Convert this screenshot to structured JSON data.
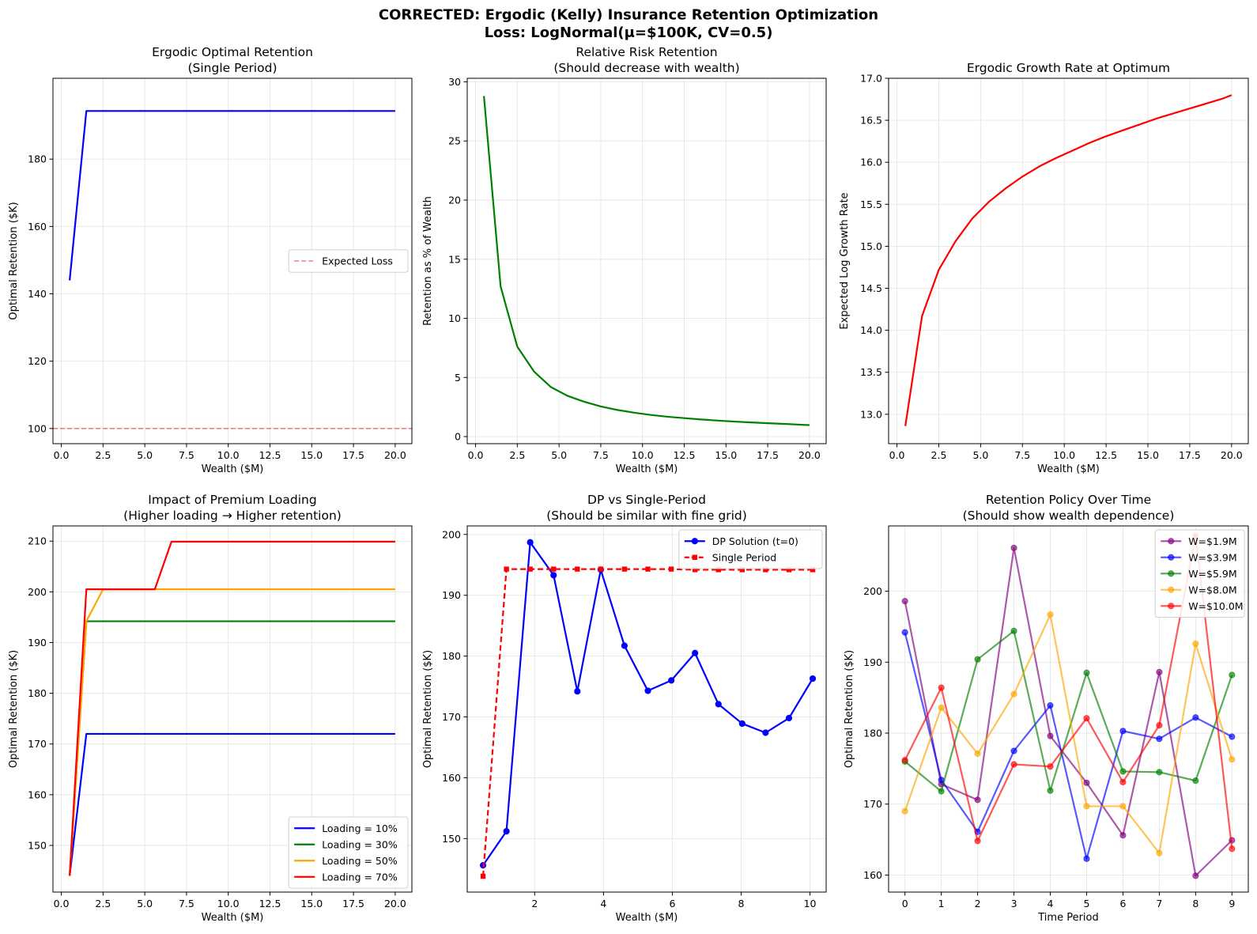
{
  "figure": {
    "title_line1": "CORRECTED: Ergodic (Kelly) Insurance Retention Optimization",
    "title_line2": "Loss: LogNormal(μ=$100K, CV=0.5)"
  },
  "chart_data": [
    {
      "id": "p1",
      "type": "line",
      "title": [
        "Ergodic Optimal Retention",
        "(Single Period)"
      ],
      "xlabel": "Wealth ($M)",
      "ylabel": "Optimal Retention ($K)",
      "xlim": [
        -0.5,
        21.0
      ],
      "ylim": [
        95.5,
        204.0
      ],
      "xticks": [
        0,
        2.5,
        5,
        7.5,
        10,
        12.5,
        15,
        17.5,
        20
      ],
      "xtick_labels": [
        "0.0",
        "2.5",
        "5.0",
        "7.5",
        "10.0",
        "12.5",
        "15.0",
        "17.5",
        "20.0"
      ],
      "yticks": [
        100,
        120,
        140,
        160,
        180
      ],
      "ytick_labels": [
        "100",
        "120",
        "140",
        "160",
        "180"
      ],
      "grid": true,
      "legend": {
        "position": "center-right",
        "entries": [
          {
            "label": "Expected Loss",
            "color": "#f08080",
            "dash": true
          }
        ]
      },
      "hlines": [
        {
          "y": 100,
          "color": "#f08080",
          "dash": true,
          "label": "Expected Loss"
        }
      ],
      "series": [
        {
          "name": "Optimal Retention",
          "color": "#0000ff",
          "width": 2.2,
          "marker": "none",
          "x": [
            0.5,
            1.5,
            20.0
          ],
          "y": [
            144.0,
            194.3,
            194.3
          ]
        }
      ]
    },
    {
      "id": "p2",
      "type": "line",
      "title": [
        "Relative Risk Retention",
        "(Should decrease with wealth)"
      ],
      "xlabel": "Wealth ($M)",
      "ylabel": "Retention as % of Wealth",
      "xlim": [
        -0.5,
        21.0
      ],
      "ylim": [
        -0.6,
        30.3
      ],
      "xticks": [
        0,
        2.5,
        5,
        7.5,
        10,
        12.5,
        15,
        17.5,
        20
      ],
      "xtick_labels": [
        "0.0",
        "2.5",
        "5.0",
        "7.5",
        "10.0",
        "12.5",
        "15.0",
        "17.5",
        "20.0"
      ],
      "yticks": [
        0,
        5,
        10,
        15,
        20,
        25,
        30
      ],
      "ytick_labels": [
        "0",
        "5",
        "10",
        "15",
        "20",
        "25",
        "30"
      ],
      "grid": true,
      "series": [
        {
          "name": "Retention %",
          "color": "#008000",
          "width": 2.2,
          "marker": "none",
          "x": [
            0.5,
            1.5,
            2.5,
            3.5,
            4.5,
            5.5,
            6.5,
            7.5,
            8.5,
            9.5,
            10.5,
            11.5,
            12.5,
            13.5,
            14.5,
            15.5,
            16.5,
            17.5,
            18.5,
            19.5,
            20.0
          ],
          "y": [
            28.8,
            12.7,
            7.6,
            5.5,
            4.2,
            3.45,
            2.95,
            2.55,
            2.25,
            2.02,
            1.83,
            1.68,
            1.56,
            1.45,
            1.35,
            1.27,
            1.2,
            1.13,
            1.07,
            1.0,
            0.97
          ]
        }
      ]
    },
    {
      "id": "p3",
      "type": "line",
      "title": [
        "Ergodic Growth Rate at Optimum"
      ],
      "xlabel": "Wealth ($M)",
      "ylabel": "Expected Log Growth Rate",
      "xlim": [
        -0.5,
        21.0
      ],
      "ylim": [
        12.65,
        17.0
      ],
      "xticks": [
        0,
        2.5,
        5,
        7.5,
        10,
        12.5,
        15,
        17.5,
        20
      ],
      "xtick_labels": [
        "0.0",
        "2.5",
        "5.0",
        "7.5",
        "10.0",
        "12.5",
        "15.0",
        "17.5",
        "20.0"
      ],
      "yticks": [
        13.0,
        13.5,
        14.0,
        14.5,
        15.0,
        15.5,
        16.0,
        16.5,
        17.0
      ],
      "ytick_labels": [
        "13.0",
        "13.5",
        "14.0",
        "14.5",
        "15.0",
        "15.5",
        "16.0",
        "16.5",
        "17.0"
      ],
      "grid": true,
      "series": [
        {
          "name": "Growth Rate",
          "color": "#ff0000",
          "width": 2.2,
          "marker": "none",
          "x": [
            0.5,
            1.5,
            2.5,
            3.5,
            4.5,
            5.5,
            6.5,
            7.5,
            8.5,
            9.5,
            10.5,
            11.5,
            12.5,
            13.5,
            14.5,
            15.5,
            16.5,
            17.5,
            18.5,
            19.5,
            20.0
          ],
          "y": [
            12.86,
            14.17,
            14.72,
            15.06,
            15.33,
            15.53,
            15.69,
            15.83,
            15.95,
            16.05,
            16.14,
            16.23,
            16.31,
            16.38,
            16.45,
            16.52,
            16.58,
            16.64,
            16.7,
            16.76,
            16.8
          ]
        }
      ]
    },
    {
      "id": "p4",
      "type": "line",
      "title": [
        "Impact of Premium Loading",
        "(Higher loading → Higher retention)"
      ],
      "xlabel": "Wealth ($M)",
      "ylabel": "Optimal Retention ($K)",
      "xlim": [
        -0.5,
        21.0
      ],
      "ylim": [
        140.8,
        213.0
      ],
      "xticks": [
        0,
        2.5,
        5,
        7.5,
        10,
        12.5,
        15,
        17.5,
        20
      ],
      "xtick_labels": [
        "0.0",
        "2.5",
        "5.0",
        "7.5",
        "10.0",
        "12.5",
        "15.0",
        "17.5",
        "20.0"
      ],
      "yticks": [
        150,
        160,
        170,
        180,
        190,
        200,
        210
      ],
      "ytick_labels": [
        "150",
        "160",
        "170",
        "180",
        "190",
        "200",
        "210"
      ],
      "grid": true,
      "legend": {
        "position": "lower-right",
        "entries": [
          {
            "label": "Loading = 10%",
            "color": "#0000ff"
          },
          {
            "label": "Loading = 30%",
            "color": "#008000"
          },
          {
            "label": "Loading = 50%",
            "color": "#ffa500"
          },
          {
            "label": "Loading = 70%",
            "color": "#ff0000"
          }
        ]
      },
      "series": [
        {
          "name": "Loading = 10%",
          "color": "#0000ff",
          "width": 2.2,
          "marker": "none",
          "x": [
            0.5,
            1.5,
            20.0
          ],
          "y": [
            144.0,
            172.0,
            172.0
          ]
        },
        {
          "name": "Loading = 30%",
          "color": "#008000",
          "width": 2.2,
          "marker": "none",
          "x": [
            0.5,
            1.5,
            20.0
          ],
          "y": [
            144.0,
            194.2,
            194.2
          ]
        },
        {
          "name": "Loading = 50%",
          "color": "#ffa500",
          "width": 2.2,
          "marker": "none",
          "x": [
            0.5,
            1.5,
            2.5,
            20.0
          ],
          "y": [
            144.0,
            194.2,
            200.5,
            200.5
          ]
        },
        {
          "name": "Loading = 70%",
          "color": "#ff0000",
          "width": 2.2,
          "marker": "none",
          "x": [
            0.5,
            1.5,
            5.6,
            6.6,
            20.0
          ],
          "y": [
            144.0,
            200.5,
            200.5,
            209.9,
            209.9
          ]
        }
      ]
    },
    {
      "id": "p5",
      "type": "line",
      "title": [
        "DP vs Single-Period",
        "(Should be similar with fine grid)"
      ],
      "xlabel": "Wealth ($M)",
      "ylabel": "Optimal Retention ($K)",
      "xlim": [
        0.04,
        10.47
      ],
      "ylim": [
        141.2,
        201.4
      ],
      "xticks": [
        2,
        4,
        6,
        8,
        10
      ],
      "xtick_labels": [
        "2",
        "4",
        "6",
        "8",
        "10"
      ],
      "yticks": [
        150,
        160,
        170,
        180,
        190,
        200
      ],
      "ytick_labels": [
        "150",
        "160",
        "170",
        "180",
        "190",
        "200"
      ],
      "grid": true,
      "legend": {
        "position": "upper-right",
        "entries": [
          {
            "label": "DP Solution (t=0)",
            "color": "#0000ff",
            "marker": "circle"
          },
          {
            "label": "Single Period",
            "color": "#ff0000",
            "marker": "square",
            "dash": true
          }
        ]
      },
      "series": [
        {
          "name": "DP Solution (t=0)",
          "color": "#0000ff",
          "width": 2.2,
          "marker": "circle",
          "dash": false,
          "x": [
            0.5,
            1.18,
            1.87,
            2.55,
            3.24,
            3.92,
            4.61,
            5.29,
            5.97,
            6.66,
            7.34,
            8.03,
            8.71,
            9.39,
            10.08
          ],
          "y": [
            145.6,
            151.2,
            198.7,
            193.3,
            174.2,
            194.2,
            181.7,
            174.3,
            176.0,
            180.5,
            172.1,
            168.9,
            167.4,
            169.8,
            176.3
          ]
        },
        {
          "name": "Single Period",
          "color": "#ff0000",
          "width": 2.2,
          "marker": "square",
          "dash": true,
          "x": [
            0.5,
            1.18,
            1.87,
            2.55,
            3.24,
            3.92,
            4.61,
            5.29,
            5.97,
            6.66,
            7.34,
            8.03,
            8.71,
            9.39,
            10.08
          ],
          "y": [
            143.8,
            194.3,
            194.3,
            194.3,
            194.3,
            194.3,
            194.3,
            194.3,
            194.3,
            194.2,
            194.2,
            194.2,
            194.2,
            194.2,
            194.2
          ]
        }
      ]
    },
    {
      "id": "p6",
      "type": "line",
      "title": [
        "Retention Policy Over Time",
        "(Should show wealth dependence)"
      ],
      "xlabel": "Time Period",
      "ylabel": "Optimal Retention ($K)",
      "xlim": [
        -0.45,
        9.45
      ],
      "ylim": [
        157.6,
        209.2
      ],
      "xticks": [
        0,
        1,
        2,
        3,
        4,
        5,
        6,
        7,
        8,
        9
      ],
      "xtick_labels": [
        "0",
        "1",
        "2",
        "3",
        "4",
        "5",
        "6",
        "7",
        "8",
        "9"
      ],
      "yticks": [
        160,
        170,
        180,
        190,
        200
      ],
      "ytick_labels": [
        "160",
        "170",
        "180",
        "190",
        "200"
      ],
      "grid": true,
      "legend": {
        "position": "upper-right",
        "entries": [
          {
            "label": "W=$1.9M",
            "color": "#800080",
            "marker": "circle"
          },
          {
            "label": "W=$3.9M",
            "color": "#0000ff",
            "marker": "circle"
          },
          {
            "label": "W=$5.9M",
            "color": "#008000",
            "marker": "circle"
          },
          {
            "label": "W=$8.0M",
            "color": "#ffa500",
            "marker": "circle"
          },
          {
            "label": "W=$10.0M",
            "color": "#ff0000",
            "marker": "circle"
          }
        ]
      },
      "series": [
        {
          "name": "W=$1.9M",
          "color": "#800080",
          "width": 2.2,
          "marker": "circle",
          "alpha": 0.65,
          "x": [
            0,
            1,
            2,
            3,
            4,
            5,
            6,
            7,
            8,
            9
          ],
          "y": [
            198.6,
            172.8,
            170.6,
            206.1,
            179.6,
            173.0,
            165.6,
            188.6,
            159.9,
            164.9
          ]
        },
        {
          "name": "W=$3.9M",
          "color": "#0000ff",
          "width": 2.2,
          "marker": "circle",
          "alpha": 0.65,
          "x": [
            0,
            1,
            2,
            3,
            4,
            5,
            6,
            7,
            8,
            9
          ],
          "y": [
            194.2,
            173.4,
            166.1,
            177.5,
            183.9,
            162.3,
            180.3,
            179.2,
            182.2,
            179.5
          ]
        },
        {
          "name": "W=$5.9M",
          "color": "#008000",
          "width": 2.2,
          "marker": "circle",
          "alpha": 0.65,
          "x": [
            0,
            1,
            2,
            3,
            4,
            5,
            6,
            7,
            8,
            9
          ],
          "y": [
            176.0,
            171.8,
            190.4,
            194.4,
            171.9,
            188.5,
            174.6,
            174.5,
            173.3,
            188.2
          ]
        },
        {
          "name": "W=$8.0M",
          "color": "#ffa500",
          "width": 2.2,
          "marker": "circle",
          "alpha": 0.65,
          "x": [
            0,
            1,
            2,
            3,
            4,
            5,
            6,
            7,
            8,
            9
          ],
          "y": [
            169.0,
            183.6,
            177.1,
            185.5,
            196.7,
            169.7,
            169.7,
            163.1,
            192.6,
            176.3
          ]
        },
        {
          "name": "W=$10.0M",
          "color": "#ff0000",
          "width": 2.2,
          "marker": "circle",
          "alpha": 0.65,
          "x": [
            0,
            1,
            2,
            3,
            4,
            5,
            6,
            7,
            8,
            9
          ],
          "y": [
            176.2,
            186.4,
            164.8,
            175.6,
            175.3,
            182.1,
            173.1,
            181.1,
            207.8,
            163.7
          ]
        }
      ]
    }
  ]
}
